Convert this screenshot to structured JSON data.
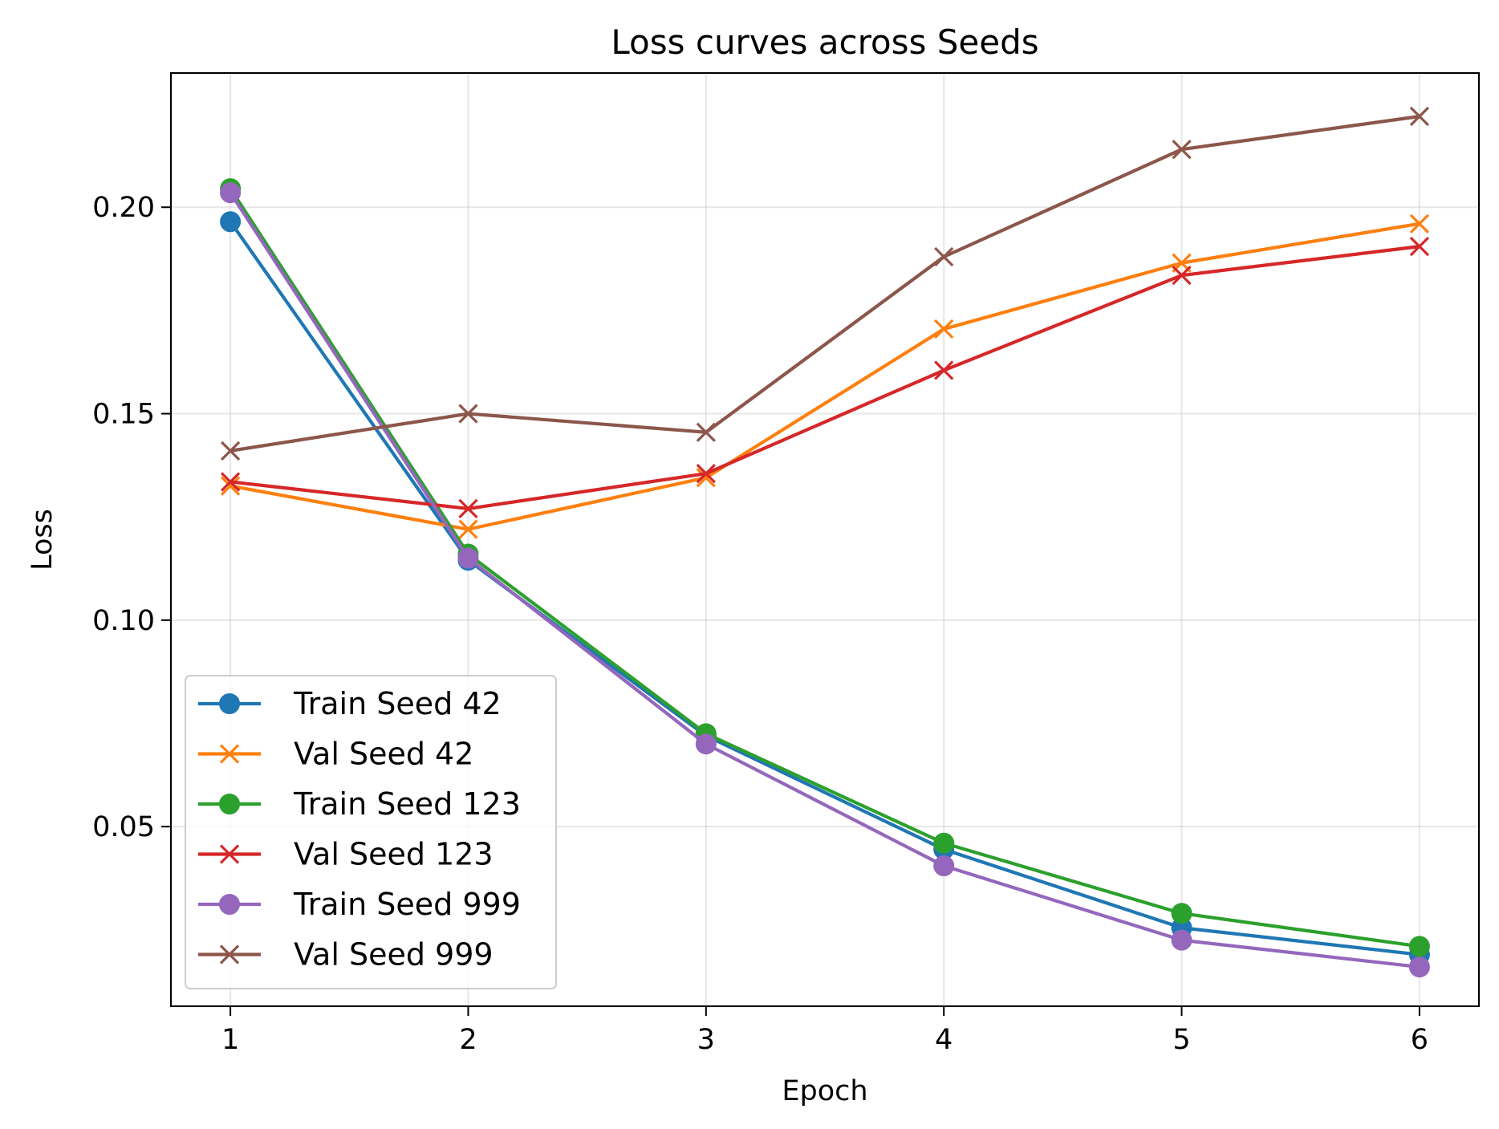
{
  "chart_data": {
    "type": "line",
    "title": "Loss curves across Seeds",
    "xlabel": "Epoch",
    "ylabel": "Loss",
    "x": [
      1,
      2,
      3,
      4,
      5,
      6
    ],
    "x_ticks": [
      "1",
      "2",
      "3",
      "4",
      "5",
      "6"
    ],
    "y_ticks": [
      "0.05",
      "0.10",
      "0.15",
      "0.20"
    ],
    "xlim": [
      0.75,
      6.25
    ],
    "ylim": [
      0.0065,
      0.2325
    ],
    "grid": true,
    "legend_position": "lower-left",
    "series": [
      {
        "name": "Train Seed 42",
        "values": [
          0.1965,
          0.1145,
          0.072,
          0.0445,
          0.0255,
          0.019
        ],
        "color": "#1f77b4",
        "marker": "circle"
      },
      {
        "name": "Val Seed 42",
        "values": [
          0.1325,
          0.122,
          0.1345,
          0.1705,
          0.1865,
          0.196
        ],
        "color": "#ff7f0e",
        "marker": "x"
      },
      {
        "name": "Train Seed 123",
        "values": [
          0.2045,
          0.116,
          0.0725,
          0.046,
          0.029,
          0.021
        ],
        "color": "#2ca02c",
        "marker": "circle"
      },
      {
        "name": "Val Seed 123",
        "values": [
          0.1335,
          0.127,
          0.1355,
          0.1605,
          0.1835,
          0.1905
        ],
        "color": "#d62728",
        "marker": "x"
      },
      {
        "name": "Train Seed 999",
        "values": [
          0.2035,
          0.115,
          0.07,
          0.0405,
          0.0225,
          0.016
        ],
        "color": "#9467bd",
        "marker": "circle"
      },
      {
        "name": "Val Seed 999",
        "values": [
          0.141,
          0.15,
          0.1455,
          0.188,
          0.214,
          0.222
        ],
        "color": "#8c564b",
        "marker": "x"
      }
    ]
  }
}
